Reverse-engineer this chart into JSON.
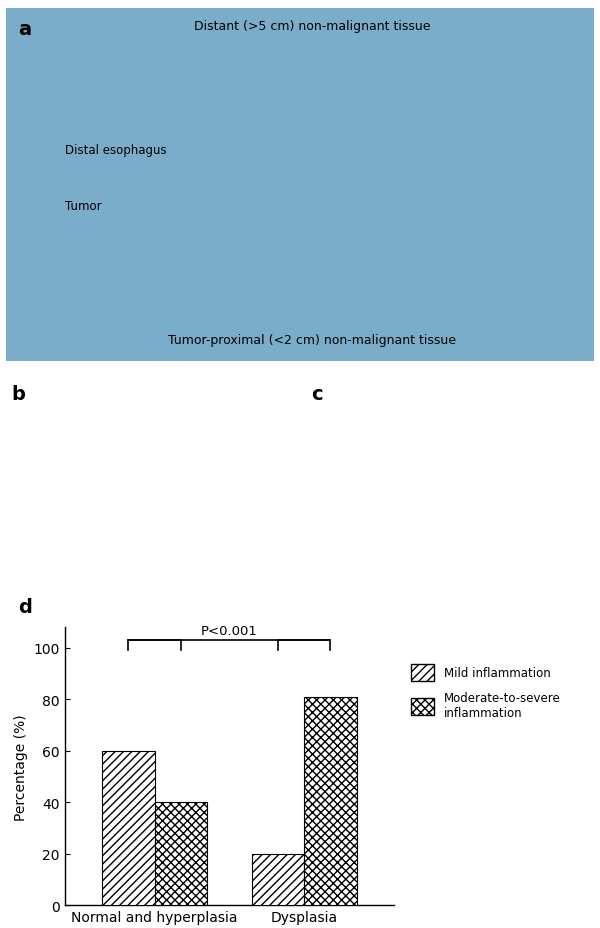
{
  "panel_d": {
    "groups": [
      "Normal and hyperplasia",
      "Dysplasia"
    ],
    "mild_values": [
      60,
      20
    ],
    "moderate_values": [
      40,
      81
    ],
    "mild_label": "Mild inflammation",
    "moderate_label": "Moderate-to-severe\ninflammation",
    "ylabel": "Percentage (%)",
    "ylim": [
      0,
      108
    ],
    "yticks": [
      0,
      20,
      40,
      60,
      80,
      100
    ],
    "pvalue_text": "P<0.001",
    "bar_width": 0.35,
    "background_color": "#ffffff",
    "tick_font_size": 10,
    "label_font_size": 10
  },
  "annotations": {
    "distant_tissue": "Distant (>5 cm) non-malignant tissue",
    "proximal_tissue": "Tumor-proximal (<2 cm) non-malignant tissue",
    "distal_esophagus": "Distal esophagus",
    "tumor": "Tumor"
  },
  "panel_a_bg": "#7aadca",
  "panel_b_bg": "#d8c0d0",
  "panel_c_bg": "#c8b0c8"
}
